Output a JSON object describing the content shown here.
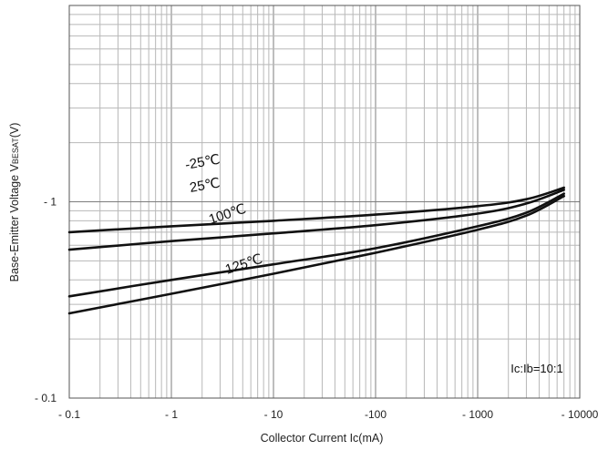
{
  "chart_data": {
    "type": "line",
    "xlabel": "Collector Current  Ic(mA)",
    "ylabel": "Base-Emitter Voltage  VBESAT(V)",
    "x_scale": "log",
    "y_scale": "log",
    "xlim": [
      0.1,
      10000
    ],
    "ylim": [
      0.1,
      10
    ],
    "grid": true,
    "x_tick_labels": [
      "- 0.1",
      "- 1",
      "- 10",
      "-100",
      "- 1000",
      "- 10000"
    ],
    "y_tick_labels": [
      "- 0.1",
      "- 1"
    ],
    "annotation": "Ic:Ib=10:1",
    "series": [
      {
        "name": "-25℃",
        "x": [
          0.1,
          1,
          10,
          100,
          1000,
          3000,
          7000
        ],
        "y": [
          0.7,
          0.75,
          0.8,
          0.86,
          0.95,
          1.03,
          1.18
        ]
      },
      {
        "name": "25℃",
        "x": [
          0.1,
          1,
          10,
          100,
          1000,
          3000,
          7000
        ],
        "y": [
          0.57,
          0.63,
          0.69,
          0.76,
          0.87,
          0.98,
          1.15
        ]
      },
      {
        "name": "100℃",
        "x": [
          0.1,
          1,
          10,
          100,
          1000,
          3000,
          7000
        ],
        "y": [
          0.33,
          0.4,
          0.48,
          0.58,
          0.75,
          0.88,
          1.1
        ]
      },
      {
        "name": "125℃",
        "x": [
          0.1,
          1,
          10,
          100,
          1000,
          3000,
          7000
        ],
        "y": [
          0.27,
          0.34,
          0.43,
          0.55,
          0.72,
          0.85,
          1.07
        ]
      }
    ]
  }
}
